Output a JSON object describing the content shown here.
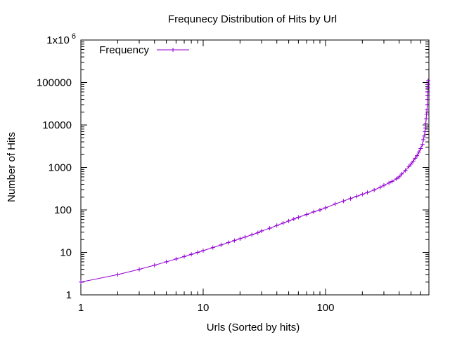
{
  "chart_data": {
    "type": "line",
    "title": "Frequnecy Distribution of Hits by Url",
    "xlabel": "Urls (Sorted by hits)",
    "ylabel": "Number of Hits",
    "xscale": "log",
    "yscale": "log",
    "xlim": [
      1,
      700
    ],
    "ylim": [
      1,
      1000000
    ],
    "grid": false,
    "legend_position": "top-left",
    "x_ticks": [
      {
        "value": 1,
        "label": "1"
      },
      {
        "value": 10,
        "label": "10"
      },
      {
        "value": 100,
        "label": "100"
      }
    ],
    "y_ticks": [
      {
        "value": 1,
        "label": "1"
      },
      {
        "value": 10,
        "label": "10"
      },
      {
        "value": 100,
        "label": "100"
      },
      {
        "value": 1000,
        "label": "1000"
      },
      {
        "value": 10000,
        "label": "10000"
      },
      {
        "value": 100000,
        "label": "100000"
      },
      {
        "value": 1000000,
        "label": "1x10",
        "superscript": "6"
      }
    ],
    "series": [
      {
        "name": "Frequency",
        "color": "#9400d3",
        "marker": "plus",
        "x": [
          1,
          2,
          3,
          4,
          5,
          6,
          7,
          8,
          9,
          10,
          12,
          14,
          16,
          18,
          20,
          22,
          25,
          28,
          30,
          35,
          40,
          45,
          50,
          55,
          60,
          70,
          80,
          90,
          100,
          120,
          140,
          160,
          180,
          200,
          220,
          250,
          280,
          300,
          330,
          350,
          380,
          400,
          420,
          450,
          480,
          500,
          520,
          540,
          560,
          580,
          600,
          620,
          630,
          640,
          650,
          655,
          660,
          665,
          670,
          675,
          680,
          683,
          685,
          687,
          688,
          689,
          690
        ],
        "values": [
          2,
          3,
          4,
          5,
          6,
          7,
          8,
          9,
          10,
          11,
          13,
          15,
          17,
          19,
          21,
          23,
          26,
          29,
          32,
          37,
          43,
          49,
          55,
          61,
          67,
          78,
          90,
          100,
          112,
          138,
          162,
          185,
          210,
          233,
          258,
          295,
          340,
          380,
          430,
          470,
          540,
          600,
          700,
          850,
          1050,
          1200,
          1400,
          1650,
          1900,
          2300,
          2800,
          3500,
          4500,
          5500,
          7000,
          8500,
          11000,
          14000,
          18000,
          23000,
          30000,
          40000,
          50000,
          60000,
          75000,
          90000,
          110000
        ]
      }
    ]
  }
}
